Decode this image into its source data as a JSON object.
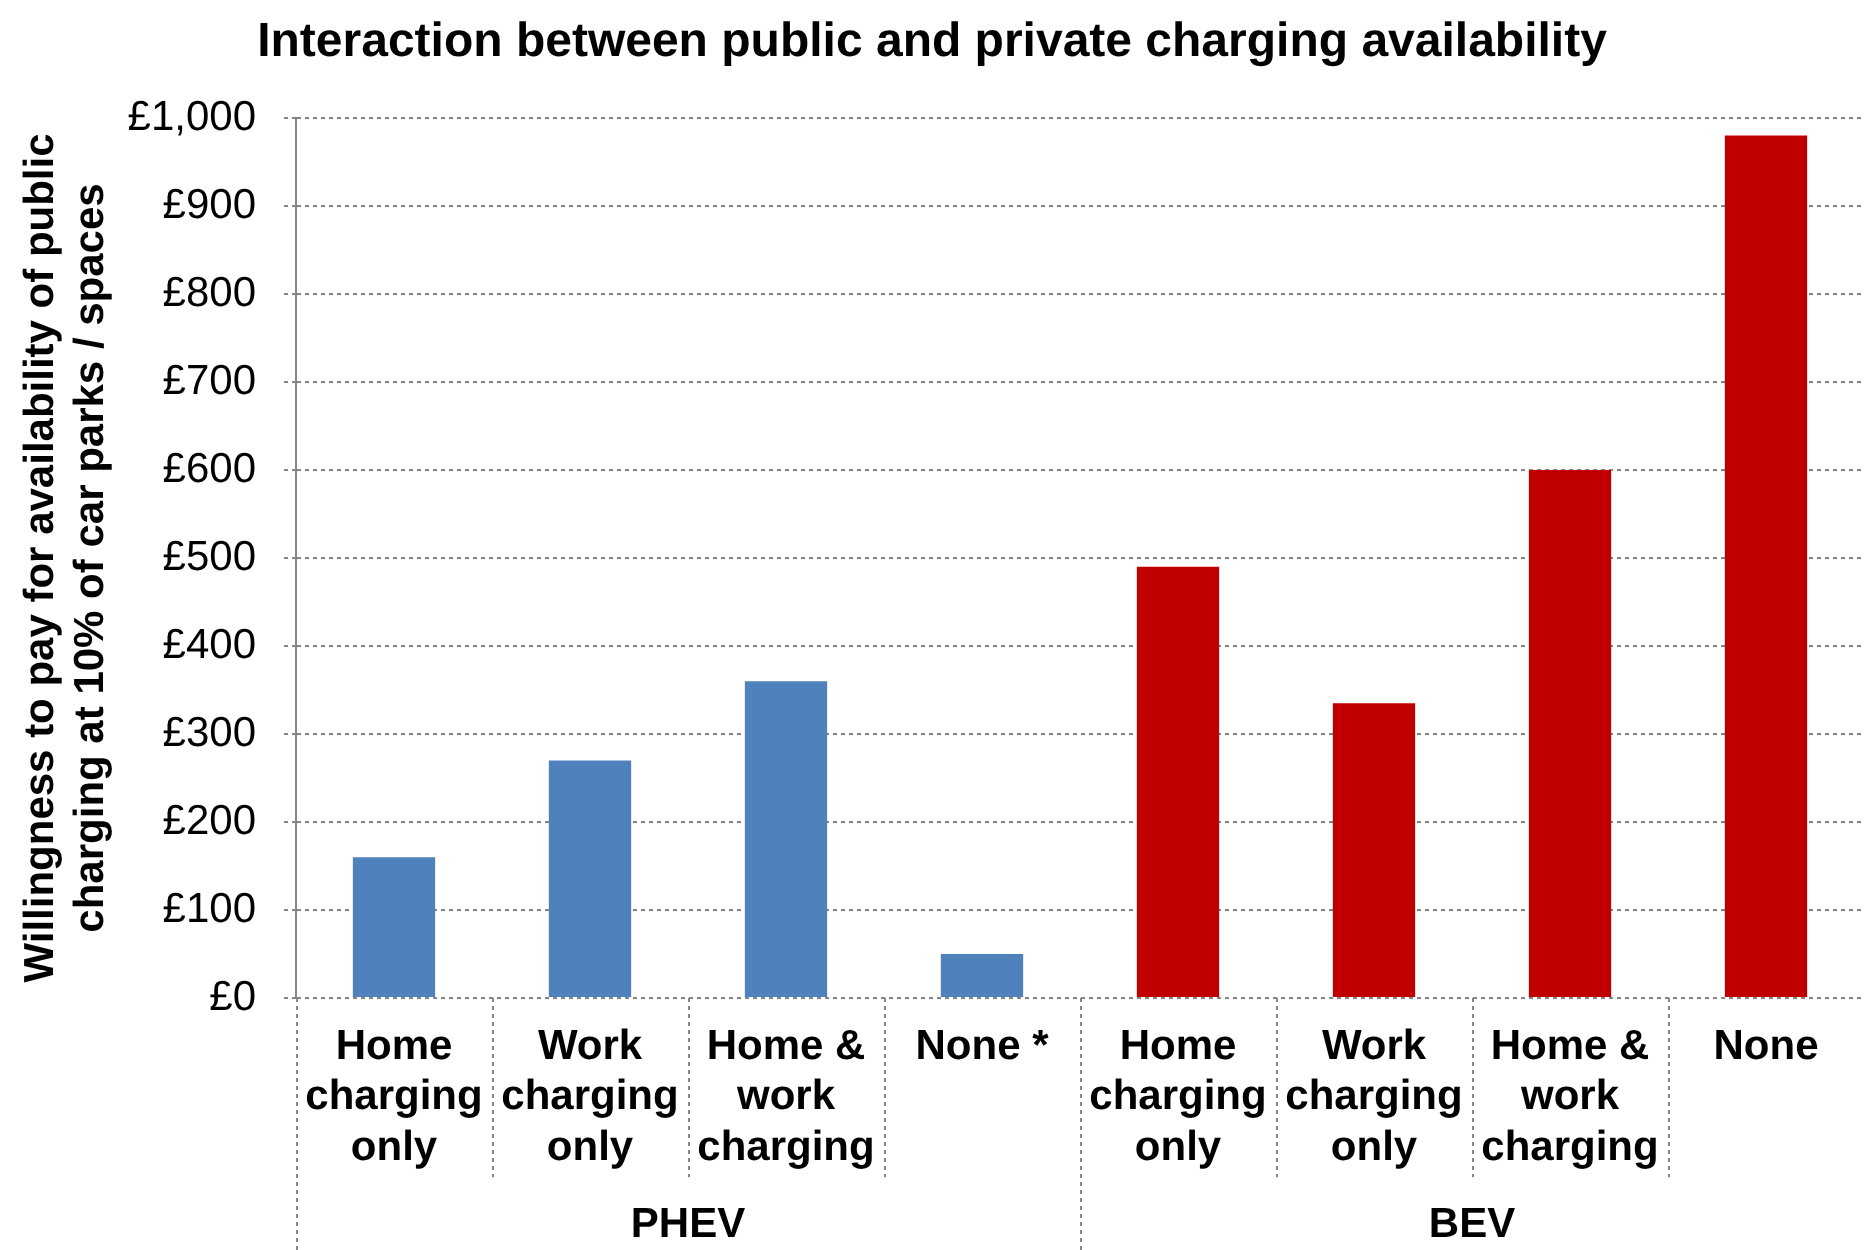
{
  "chart_data": {
    "type": "bar",
    "title": "Interaction between public and private charging availability",
    "ylabel": "Willingness to pay for availability of public charging at 10% of car parks / spaces",
    "categories": [
      "Home charging only",
      "Work charging only",
      "Home & work charging",
      "None *",
      "Home charging only",
      "Work charging only",
      "Home & work charging",
      "None"
    ],
    "values": [
      160,
      270,
      360,
      50,
      490,
      335,
      600,
      980
    ],
    "colors": [
      "#4f81bd",
      "#4f81bd",
      "#4f81bd",
      "#4f81bd",
      "#c00000",
      "#c00000",
      "#c00000",
      "#c00000"
    ],
    "annotations": [
      "PHEV",
      "BEV"
    ],
    "ylim": [
      0,
      1000
    ],
    "yticks": [
      {
        "value": 0,
        "label": "£0"
      },
      {
        "value": 100,
        "label": "£100"
      },
      {
        "value": 200,
        "label": "£200"
      },
      {
        "value": 300,
        "label": "£300"
      },
      {
        "value": 400,
        "label": "£400"
      },
      {
        "value": 500,
        "label": "£500"
      },
      {
        "value": 600,
        "label": "£600"
      },
      {
        "value": 700,
        "label": "£700"
      },
      {
        "value": 800,
        "label": "£800"
      },
      {
        "value": 900,
        "label": "£900"
      },
      {
        "value": 1000,
        "label": "£1,000"
      }
    ],
    "grid": "y"
  }
}
